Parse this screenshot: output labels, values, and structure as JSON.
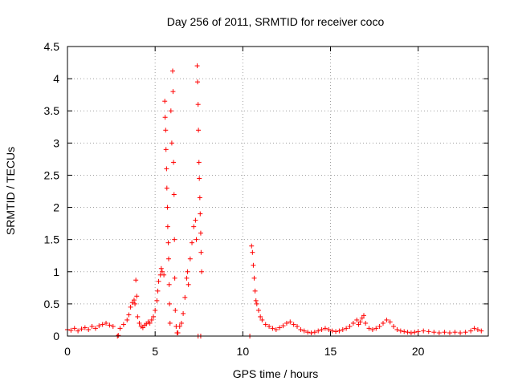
{
  "chart_data": {
    "type": "scatter",
    "title": "Day 256 of 2011, SRMTID for receiver coco",
    "xlabel": "GPS time / hours",
    "ylabel": "SRMTID / TECUs",
    "xlim": [
      0,
      24
    ],
    "ylim": [
      0,
      4.5
    ],
    "xticks": [
      0,
      5,
      10,
      15,
      20
    ],
    "xtick_labels": [
      "0",
      "5",
      "10",
      "15",
      "20"
    ],
    "yticks": [
      0,
      0.5,
      1,
      1.5,
      2,
      2.5,
      3,
      3.5,
      4,
      4.5
    ],
    "ytick_labels": [
      "0",
      "0.5",
      "1",
      "1.5",
      "2",
      "2.5",
      "3",
      "3.5",
      "4",
      "4.5"
    ],
    "grid": true,
    "marker": "+",
    "color": "#ff0000",
    "series": [
      {
        "name": "SRMTID",
        "points": [
          [
            0.0,
            0.1
          ],
          [
            0.2,
            0.09
          ],
          [
            0.4,
            0.12
          ],
          [
            0.6,
            0.08
          ],
          [
            0.8,
            0.11
          ],
          [
            1.0,
            0.13
          ],
          [
            1.2,
            0.1
          ],
          [
            1.4,
            0.15
          ],
          [
            1.6,
            0.12
          ],
          [
            1.8,
            0.16
          ],
          [
            2.0,
            0.18
          ],
          [
            2.2,
            0.2
          ],
          [
            2.4,
            0.17
          ],
          [
            2.6,
            0.15
          ],
          [
            2.85,
            0.0
          ],
          [
            2.9,
            0.01
          ],
          [
            3.0,
            0.12
          ],
          [
            3.2,
            0.18
          ],
          [
            3.4,
            0.25
          ],
          [
            3.5,
            0.33
          ],
          [
            3.6,
            0.45
          ],
          [
            3.7,
            0.52
          ],
          [
            3.8,
            0.56
          ],
          [
            3.85,
            0.5
          ],
          [
            3.9,
            0.87
          ],
          [
            3.95,
            0.62
          ],
          [
            4.0,
            0.3
          ],
          [
            4.1,
            0.2
          ],
          [
            4.2,
            0.15
          ],
          [
            4.3,
            0.13
          ],
          [
            4.4,
            0.17
          ],
          [
            4.5,
            0.19
          ],
          [
            4.6,
            0.22
          ],
          [
            4.7,
            0.2
          ],
          [
            4.8,
            0.25
          ],
          [
            4.9,
            0.3
          ],
          [
            5.0,
            0.4
          ],
          [
            5.1,
            0.55
          ],
          [
            5.15,
            0.7
          ],
          [
            5.2,
            0.85
          ],
          [
            5.3,
            0.95
          ],
          [
            5.35,
            1.05
          ],
          [
            5.4,
            1.0
          ],
          [
            5.5,
            0.95
          ],
          [
            5.55,
            3.65
          ],
          [
            5.57,
            3.4
          ],
          [
            5.6,
            3.2
          ],
          [
            5.62,
            2.9
          ],
          [
            5.65,
            2.6
          ],
          [
            5.67,
            2.3
          ],
          [
            5.7,
            2.0
          ],
          [
            5.72,
            1.7
          ],
          [
            5.75,
            1.45
          ],
          [
            5.77,
            1.2
          ],
          [
            5.8,
            0.8
          ],
          [
            5.82,
            0.5
          ],
          [
            5.85,
            0.2
          ],
          [
            5.9,
            3.5
          ],
          [
            5.95,
            3.0
          ],
          [
            6.0,
            4.12
          ],
          [
            6.02,
            3.8
          ],
          [
            6.05,
            2.7
          ],
          [
            6.08,
            2.2
          ],
          [
            6.1,
            1.5
          ],
          [
            6.12,
            0.9
          ],
          [
            6.15,
            0.4
          ],
          [
            6.2,
            0.15
          ],
          [
            6.25,
            0.05
          ],
          [
            6.3,
            0.05
          ],
          [
            6.4,
            0.15
          ],
          [
            6.5,
            0.2
          ],
          [
            6.6,
            0.35
          ],
          [
            6.7,
            0.6
          ],
          [
            6.8,
            0.9
          ],
          [
            6.85,
            1.0
          ],
          [
            6.9,
            0.8
          ],
          [
            7.0,
            1.2
          ],
          [
            7.1,
            1.45
          ],
          [
            7.2,
            1.7
          ],
          [
            7.3,
            1.8
          ],
          [
            7.35,
            1.5
          ],
          [
            7.4,
            4.2
          ],
          [
            7.42,
            3.95
          ],
          [
            7.45,
            3.6
          ],
          [
            7.47,
            3.2
          ],
          [
            7.5,
            2.7
          ],
          [
            7.52,
            2.45
          ],
          [
            7.55,
            2.15
          ],
          [
            7.57,
            1.9
          ],
          [
            7.6,
            1.6
          ],
          [
            7.62,
            1.3
          ],
          [
            7.65,
            1.0
          ],
          [
            7.45,
            0.0
          ],
          [
            7.6,
            0.0
          ],
          [
            10.4,
            0.0
          ],
          [
            10.5,
            1.4
          ],
          [
            10.55,
            1.3
          ],
          [
            10.6,
            1.1
          ],
          [
            10.65,
            0.9
          ],
          [
            10.7,
            0.7
          ],
          [
            10.75,
            0.55
          ],
          [
            10.8,
            0.5
          ],
          [
            10.9,
            0.4
          ],
          [
            11.0,
            0.3
          ],
          [
            11.1,
            0.25
          ],
          [
            11.3,
            0.18
          ],
          [
            11.5,
            0.15
          ],
          [
            11.7,
            0.12
          ],
          [
            11.9,
            0.1
          ],
          [
            12.1,
            0.13
          ],
          [
            12.3,
            0.16
          ],
          [
            12.5,
            0.2
          ],
          [
            12.7,
            0.22
          ],
          [
            12.9,
            0.18
          ],
          [
            13.1,
            0.15
          ],
          [
            13.3,
            0.1
          ],
          [
            13.5,
            0.08
          ],
          [
            13.7,
            0.06
          ],
          [
            13.9,
            0.05
          ],
          [
            14.1,
            0.06
          ],
          [
            14.3,
            0.08
          ],
          [
            14.5,
            0.1
          ],
          [
            14.7,
            0.12
          ],
          [
            14.9,
            0.1
          ],
          [
            15.1,
            0.08
          ],
          [
            15.3,
            0.07
          ],
          [
            15.5,
            0.08
          ],
          [
            15.7,
            0.1
          ],
          [
            15.9,
            0.12
          ],
          [
            16.1,
            0.15
          ],
          [
            16.3,
            0.2
          ],
          [
            16.5,
            0.25
          ],
          [
            16.6,
            0.18
          ],
          [
            16.7,
            0.22
          ],
          [
            16.8,
            0.28
          ],
          [
            16.9,
            0.32
          ],
          [
            17.0,
            0.2
          ],
          [
            17.2,
            0.12
          ],
          [
            17.4,
            0.1
          ],
          [
            17.6,
            0.12
          ],
          [
            17.8,
            0.15
          ],
          [
            18.0,
            0.2
          ],
          [
            18.2,
            0.25
          ],
          [
            18.4,
            0.22
          ],
          [
            18.6,
            0.15
          ],
          [
            18.8,
            0.1
          ],
          [
            19.0,
            0.08
          ],
          [
            19.2,
            0.07
          ],
          [
            19.4,
            0.06
          ],
          [
            19.6,
            0.05
          ],
          [
            19.8,
            0.06
          ],
          [
            20.0,
            0.07
          ],
          [
            20.3,
            0.08
          ],
          [
            20.6,
            0.07
          ],
          [
            20.9,
            0.06
          ],
          [
            21.2,
            0.05
          ],
          [
            21.5,
            0.06
          ],
          [
            21.8,
            0.05
          ],
          [
            22.1,
            0.06
          ],
          [
            22.4,
            0.05
          ],
          [
            22.7,
            0.06
          ],
          [
            23.0,
            0.08
          ],
          [
            23.2,
            0.12
          ],
          [
            23.4,
            0.1
          ],
          [
            23.6,
            0.08
          ]
        ]
      }
    ]
  }
}
